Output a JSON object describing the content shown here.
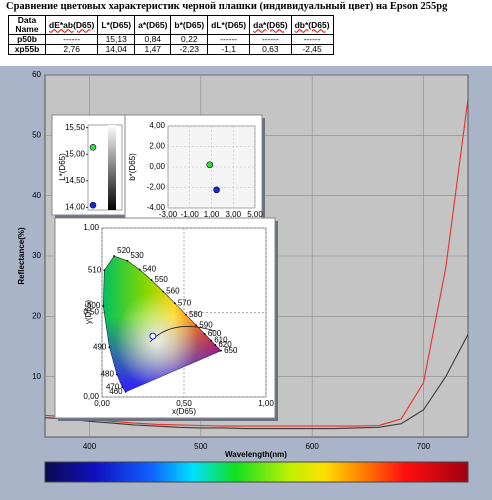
{
  "title": "Сравнение цветовых характеристик черной плашки (индивидуальный цвет) на Epson 255pg",
  "table": {
    "header": [
      "Data Name",
      "dE*ab(D65)",
      "L*(D65)",
      "a*(D65)",
      "b*(D65)",
      "dL*(D65)",
      "da*(D65)",
      "db*(D65)"
    ],
    "rows": [
      [
        "p50b",
        "------",
        "15,13",
        "0,84",
        "0,22",
        "------",
        "------",
        "------"
      ],
      [
        "xp55b",
        "2,76",
        "14,04",
        "1,47",
        "-2,23",
        "-1,1",
        "0,63",
        "-2,45"
      ]
    ]
  },
  "chart_data": [
    {
      "type": "line",
      "xlabel": "Wavelength(nm)",
      "ylabel": "Reflectance(%)",
      "x": [
        360,
        380,
        400,
        420,
        440,
        460,
        480,
        500,
        520,
        540,
        560,
        580,
        600,
        620,
        640,
        660,
        680,
        700,
        720,
        740
      ],
      "series": [
        {
          "color": "#e8302c",
          "values": [
            3.6,
            3.3,
            2.9,
            2.6,
            2.3,
            2.1,
            2.0,
            1.9,
            1.8,
            1.8,
            1.8,
            1.8,
            1.8,
            1.8,
            1.8,
            1.9,
            3.0,
            9,
            28,
            56
          ]
        },
        {
          "color": "#3a3a3a",
          "values": [
            3.2,
            3.0,
            2.6,
            2.3,
            2.0,
            1.8,
            1.6,
            1.5,
            1.5,
            1.4,
            1.4,
            1.4,
            1.4,
            1.4,
            1.5,
            1.6,
            2.2,
            4.5,
            10,
            17
          ]
        }
      ],
      "xlim": [
        360,
        740
      ],
      "xticks": [
        400,
        500,
        600,
        700
      ],
      "ylim": [
        0,
        60
      ],
      "yticks": [
        10,
        20,
        30,
        40,
        50,
        60
      ],
      "grid": true
    },
    {
      "type": "strip",
      "ylabel": "L*(D65)",
      "ylim": [
        13.95,
        15.55
      ],
      "yticks": [
        {
          "value": 14,
          "label": "14,00"
        },
        {
          "value": 14.5,
          "label": "14,50"
        },
        {
          "value": 15,
          "label": "15,00"
        },
        {
          "value": 15.5,
          "label": "15,50"
        }
      ],
      "series": [
        {
          "color": "#33dd33",
          "values": [
            15.13
          ]
        },
        {
          "color": "#1a2ad8",
          "values": [
            14.04
          ]
        }
      ]
    },
    {
      "type": "scatter",
      "ylabel": "b*(D65)",
      "xlim": [
        -3,
        5
      ],
      "ylim": [
        -4,
        4
      ],
      "xticks": [
        {
          "value": -3,
          "label": "-3,00"
        },
        {
          "value": -1,
          "label": "-1,00"
        },
        {
          "value": 1,
          "label": "1,00"
        },
        {
          "value": 3,
          "label": "3,00"
        },
        {
          "value": 5,
          "label": "5,00"
        }
      ],
      "yticks": [
        {
          "value": -4,
          "label": "-4,00"
        },
        {
          "value": -2,
          "label": "-2,00"
        },
        {
          "value": 0,
          "label": "0,00"
        },
        {
          "value": 2,
          "label": "2,00"
        },
        {
          "value": 4,
          "label": "4,00"
        }
      ],
      "series": [
        {
          "color": "#33dd33",
          "x": [
            0.84
          ],
          "values": [
            0.22
          ]
        },
        {
          "color": "#1a2ad8",
          "x": [
            1.47
          ],
          "values": [
            -2.23
          ]
        }
      ]
    },
    {
      "type": "chromaticity",
      "xlabel": "x(D65)",
      "ylabel": "y(D65)",
      "xlim": [
        0,
        1
      ],
      "ylim": [
        0,
        1
      ],
      "xticks": [
        {
          "value": 0,
          "label": "0,00"
        },
        {
          "value": 0.5,
          "label": "0,50"
        },
        {
          "value": 1,
          "label": "1,00"
        }
      ],
      "yticks": [
        {
          "value": 0,
          "label": "0,00"
        },
        {
          "value": 0.5,
          "label": "0,50"
        },
        {
          "value": 1,
          "label": "1,00"
        }
      ],
      "locus": {
        "labels": [
          "460",
          "470",
          "480",
          "490",
          "500",
          "510",
          "520",
          "530",
          "540",
          "550",
          "560",
          "570",
          "580",
          "590",
          "600",
          "610",
          "620",
          "650"
        ],
        "x": [
          0.144,
          0.124,
          0.091,
          0.045,
          0.008,
          0.014,
          0.074,
          0.155,
          0.23,
          0.302,
          0.373,
          0.444,
          0.512,
          0.575,
          0.627,
          0.666,
          0.691,
          0.726
        ],
        "values": [
          0.03,
          0.058,
          0.133,
          0.295,
          0.538,
          0.75,
          0.834,
          0.806,
          0.754,
          0.692,
          0.624,
          0.555,
          0.487,
          0.424,
          0.373,
          0.334,
          0.308,
          0.274
        ]
      },
      "series": [
        {
          "color": "#1a2ad8",
          "x": [
            0.31
          ],
          "values": [
            0.36
          ]
        }
      ]
    }
  ]
}
